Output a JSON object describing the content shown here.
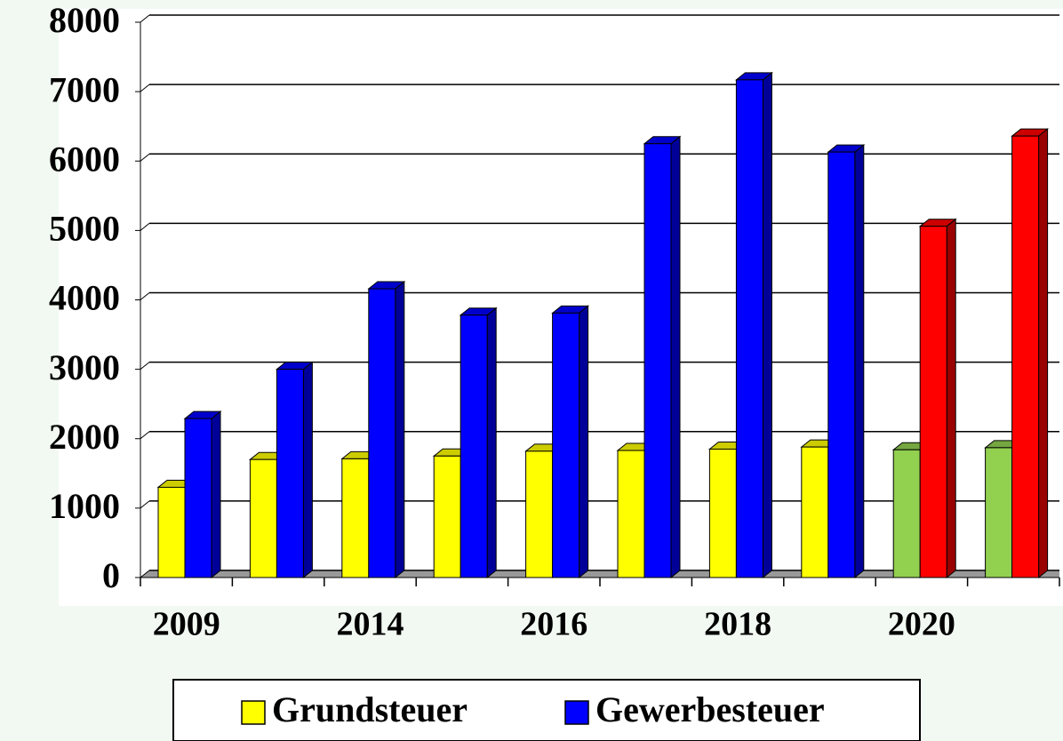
{
  "chart_data": {
    "type": "bar",
    "categories": [
      "2009",
      null,
      "2014",
      null,
      "2016",
      null,
      "2018",
      null,
      "2020",
      null
    ],
    "series": [
      {
        "name": "Grundsteuer",
        "color": "#ffff00",
        "colors": [
          "#ffff00",
          "#ffff00",
          "#ffff00",
          "#ffff00",
          "#ffff00",
          "#ffff00",
          "#ffff00",
          "#ffff00",
          "#92d050",
          "#92d050"
        ],
        "values": [
          1300,
          1700,
          1710,
          1750,
          1820,
          1830,
          1850,
          1880,
          1840,
          1870
        ]
      },
      {
        "name": "Gewerbesteuer",
        "color": "#0000ff",
        "colors": [
          "#0000ff",
          "#0000ff",
          "#0000ff",
          "#0000ff",
          "#0000ff",
          "#0000ff",
          "#0000ff",
          "#0000ff",
          "#ff0000",
          "#ff0000"
        ],
        "values": [
          2290,
          3000,
          4160,
          3780,
          3810,
          6250,
          7170,
          6130,
          5060,
          6360
        ]
      }
    ],
    "ylim": [
      0,
      8000
    ],
    "yticks": [
      0,
      1000,
      2000,
      3000,
      4000,
      5000,
      6000,
      7000,
      8000
    ],
    "grid": true,
    "legend": "bottom"
  }
}
